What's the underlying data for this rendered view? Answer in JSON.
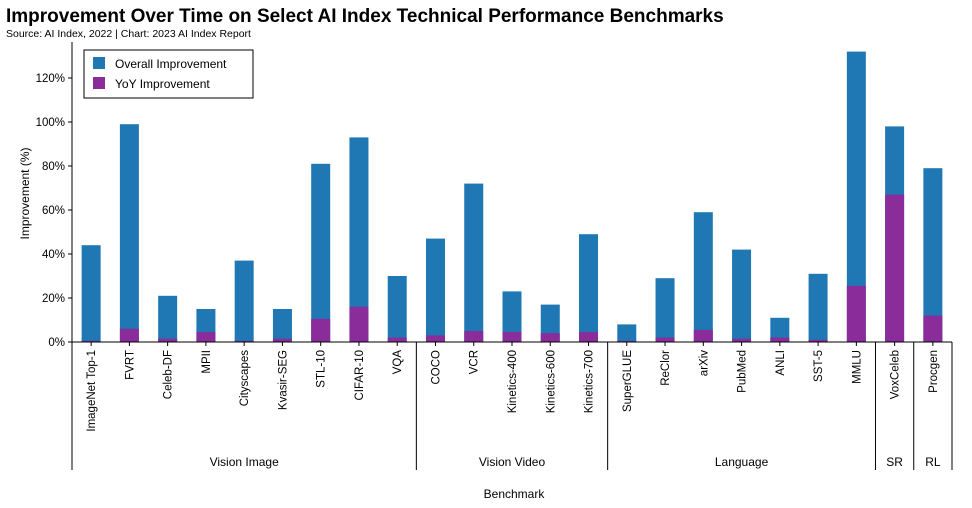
{
  "title": "Improvement Over Time on Select AI Index Technical Performance Benchmarks",
  "subtitle": "Source: AI Index, 2022 | Chart: 2023 AI Index Report",
  "colors": {
    "overall": "#1f77b4",
    "yoy": "#8a2c9a",
    "axis": "#000000"
  },
  "chart_data": {
    "type": "bar",
    "stacked": "overlay",
    "categories": [
      "ImageNet Top-1",
      "FVRT",
      "Celeb-DF",
      "MPII",
      "Cityscapes",
      "Kvasir-SEG",
      "STL-10",
      "CIFAR-10",
      "VQA",
      "COCO",
      "VCR",
      "Kinetics-400",
      "Kinetics-600",
      "Kinetics-700",
      "SuperGLUE",
      "ReClor",
      "arXiv",
      "PubMed",
      "ANLI",
      "SST-5",
      "MMLU",
      "VoxCeleb",
      "Procgen"
    ],
    "series": [
      {
        "name": "Overall Improvement",
        "values": [
          44,
          99,
          21,
          15,
          37,
          15,
          81,
          93,
          30,
          47,
          72,
          23,
          17,
          49,
          8,
          29,
          59,
          42,
          11,
          31,
          132,
          98,
          79
        ]
      },
      {
        "name": "YoY Improvement",
        "values": [
          0.5,
          6,
          1.5,
          4.5,
          0.5,
          1.5,
          10.5,
          16,
          2,
          3,
          5,
          4.5,
          4,
          4.5,
          0.5,
          2,
          5.5,
          1.5,
          2,
          1,
          25.5,
          67,
          12
        ]
      }
    ],
    "groups": [
      {
        "label": "Vision Image",
        "count": 9
      },
      {
        "label": "Vision Video",
        "count": 5
      },
      {
        "label": "Language",
        "count": 7
      },
      {
        "label": "SR",
        "count": 1
      },
      {
        "label": "RL",
        "count": 1
      }
    ],
    "xlabel": "Benchmark",
    "ylabel": "Improvement (%)",
    "ylim": [
      0,
      135
    ],
    "yticks": [
      "0%",
      "20%",
      "40%",
      "60%",
      "80%",
      "100%",
      "120%"
    ],
    "legend_position": "top-left",
    "grid": false
  }
}
